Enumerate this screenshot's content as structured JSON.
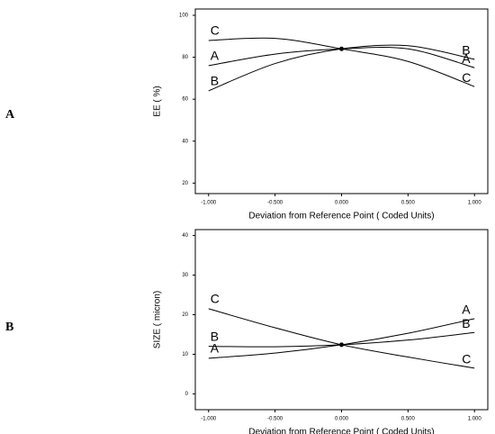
{
  "chart_data": [
    {
      "type": "line",
      "panel_label": "A",
      "x_label": "Deviation from Reference Point (   Coded Units)",
      "y_label": "EE (  %)",
      "x": [
        -1,
        -0.5,
        0,
        0.5,
        1
      ],
      "series": [
        {
          "name": "A",
          "color": "#000000",
          "values": [
            76,
            81.5,
            84,
            84,
            75
          ]
        },
        {
          "name": "B",
          "color": "#000000",
          "values": [
            64,
            77,
            84,
            85.5,
            79
          ]
        },
        {
          "name": "C",
          "color": "#000000",
          "values": [
            88,
            89,
            84,
            78,
            66
          ]
        }
      ],
      "xlim": [
        -1.1,
        1.1
      ],
      "ylim": [
        15,
        103
      ],
      "xticks": [
        {
          "value": -1,
          "label": "-1.000"
        },
        {
          "value": -0.5,
          "label": "-0.500"
        },
        {
          "value": 0,
          "label": "0.000"
        },
        {
          "value": 0.5,
          "label": "0.500"
        },
        {
          "value": 1,
          "label": "1.000"
        }
      ],
      "yticks": [
        20,
        40,
        60,
        80,
        100
      ]
    },
    {
      "type": "line",
      "panel_label": "B",
      "x_label": "Deviation from Reference Point (   Coded Units)",
      "y_label": "SIZE (  micron)",
      "x": [
        -1,
        -0.5,
        0,
        0.5,
        1
      ],
      "series": [
        {
          "name": "A",
          "color": "#000000",
          "values": [
            9,
            10.3,
            12.4,
            15.3,
            19
          ]
        },
        {
          "name": "B",
          "color": "#000000",
          "values": [
            12,
            11.9,
            12.4,
            13.6,
            15.5
          ]
        },
        {
          "name": "C",
          "color": "#000000",
          "values": [
            21.5,
            16.7,
            12.4,
            9.3,
            6.5
          ]
        }
      ],
      "xlim": [
        -1.1,
        1.1
      ],
      "ylim": [
        -4,
        41.5
      ],
      "xticks": [
        {
          "value": -1,
          "label": "-1.000"
        },
        {
          "value": -0.5,
          "label": "-0.500"
        },
        {
          "value": 0,
          "label": "0.000"
        },
        {
          "value": 0.5,
          "label": "0.500"
        },
        {
          "value": 1,
          "label": "1.000"
        }
      ],
      "yticks": [
        0,
        10,
        20,
        30,
        40
      ]
    }
  ]
}
